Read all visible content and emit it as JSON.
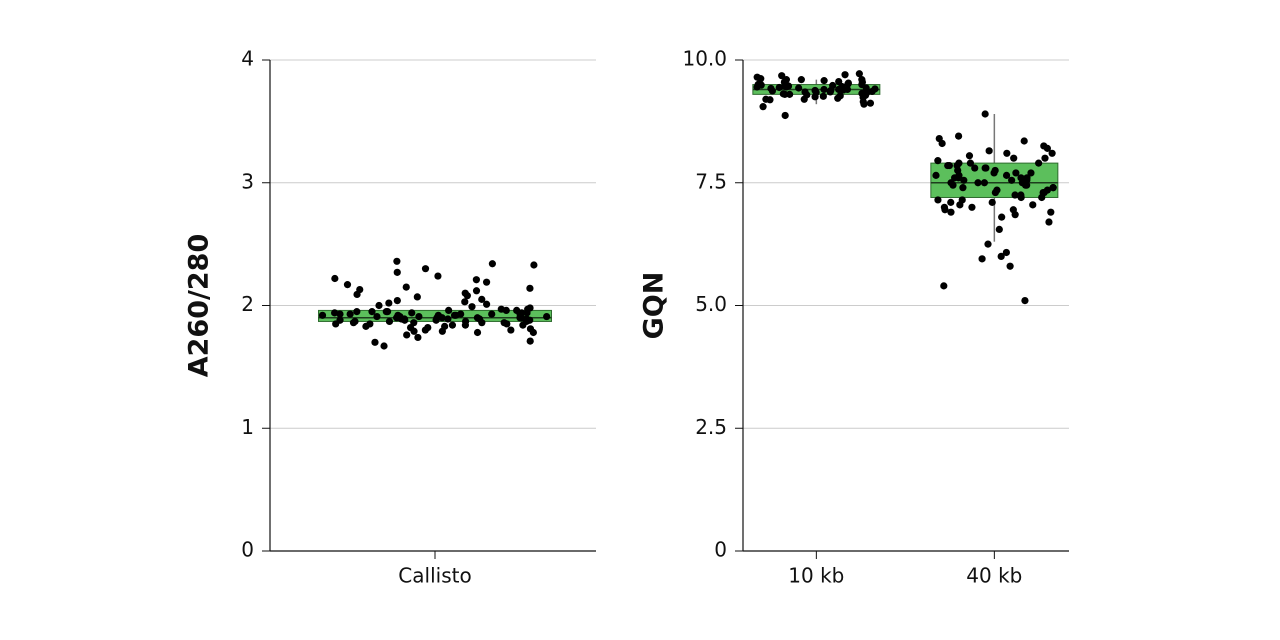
{
  "chart_data": [
    {
      "type": "box",
      "ylabel": "A260/280",
      "categories": [
        "Callisto"
      ],
      "ylim": [
        0,
        4
      ],
      "yticks": [
        0,
        1,
        2,
        3,
        4
      ],
      "grid": true,
      "color": "#5cbf5c",
      "boxes": [
        {
          "q1": 1.87,
          "median": 1.9,
          "q3": 1.96,
          "points": [
            1.92,
            1.88,
            1.95,
            1.85,
            2.01,
            1.79,
            1.9,
            1.93,
            2.34,
            1.83,
            2.12,
            1.87,
            1.96,
            1.91,
            1.76,
            2.05,
            1.89,
            1.94,
            2.21,
            1.82,
            1.98,
            1.86,
            1.93,
            2.24,
            1.71,
            1.9,
            2.08,
            1.84,
            1.97,
            1.88,
            2.15,
            1.92,
            1.8,
            2.27,
            1.95,
            1.87,
            1.91,
            2.02,
            1.78,
            1.89,
            2.19,
            1.93,
            1.85,
            1.67,
            1.96,
            1.9,
            2.07,
            1.83,
            1.94,
            2.22,
            1.88,
            1.91,
            1.99,
            1.81,
            1.92,
            2.13,
            1.86,
            1.95,
            1.89,
            1.74,
            2.04,
            1.9,
            1.93,
            1.7,
            1.87,
            2.3,
            1.96,
            1.84,
            2.1,
            1.91,
            1.88,
            1.78,
            2.33,
            1.94,
            1.86,
            2.0,
            1.92,
            1.89,
            2.36,
            1.82,
            1.97,
            1.9,
            2.17,
            1.85,
            1.93,
            1.79,
            2.09,
            1.88,
            1.91,
            1.95,
            2.03,
            1.87,
            1.8,
            1.92,
            1.86,
            2.14,
            1.9,
            1.84,
            1.94,
            1.89
          ]
        }
      ]
    },
    {
      "type": "box",
      "ylabel": "GQN",
      "categories": [
        "10 kb",
        "40 kb"
      ],
      "ylim": [
        0,
        10
      ],
      "yticks": [
        0,
        2.5,
        {
          "value": 5,
          "label": "5.0"
        },
        7.5,
        {
          "value": 10,
          "label": "10.0"
        }
      ],
      "grid": true,
      "color": "#5cbf5c",
      "boxes": [
        {
          "q1": 9.3,
          "median": 9.4,
          "q3": 9.5,
          "whislo": 9.1,
          "whishi": 9.6,
          "points": [
            9.4,
            9.3,
            9.5,
            9.6,
            9.2,
            9.45,
            9.35,
            9.55,
            9.7,
            9.25,
            9.4,
            8.87,
            9.5,
            9.3,
            9.6,
            9.15,
            9.42,
            9.38,
            9.65,
            9.28,
            9.48,
            9.33,
            9.52,
            9.1,
            9.44,
            9.36,
            9.58,
            9.22,
            9.47,
            9.31,
            9.68,
            9.4,
            9.05,
            9.53,
            9.27,
            9.46,
            9.34,
            9.62,
            9.19,
            9.43,
            9.37,
            9.56,
            9.24,
            9.49,
            9.32,
            9.72,
            9.41,
            9.12,
            9.51,
            9.29,
            9.45,
            9.39,
            9.6,
            9.2,
            9.47,
            9.35,
            9.55,
            9.26,
            9.43,
            9.38
          ]
        },
        {
          "q1": 7.2,
          "median": 7.5,
          "q3": 7.9,
          "whislo": 6.3,
          "whishi": 8.9,
          "points": [
            7.5,
            7.8,
            7.2,
            8.9,
            7.6,
            7.0,
            8.1,
            7.4,
            5.8,
            7.9,
            7.3,
            8.45,
            7.55,
            6.9,
            7.7,
            6.0,
            7.45,
            8.2,
            7.1,
            7.85,
            6.25,
            7.6,
            8.0,
            7.35,
            6.8,
            7.75,
            5.1,
            7.5,
            8.35,
            7.15,
            7.9,
            6.55,
            7.65,
            7.25,
            8.05,
            7.4,
            6.95,
            7.8,
            5.4,
            7.55,
            7.05,
            8.25,
            7.3,
            7.7,
            6.7,
            7.95,
            7.45,
            6.08,
            7.6,
            7.2,
            8.4,
            7.5,
            7.0,
            7.85,
            6.95,
            7.65,
            8.1,
            7.35,
            7.75,
            7.1,
            7.9,
            6.85,
            7.55,
            8.15,
            7.4,
            7.8,
            7.25,
            7.6,
            5.95,
            7.5,
            8.3,
            7.15,
            7.7,
            6.9,
            7.45,
            8.0,
            7.3,
            7.85,
            7.05,
            7.65
          ]
        }
      ]
    }
  ]
}
